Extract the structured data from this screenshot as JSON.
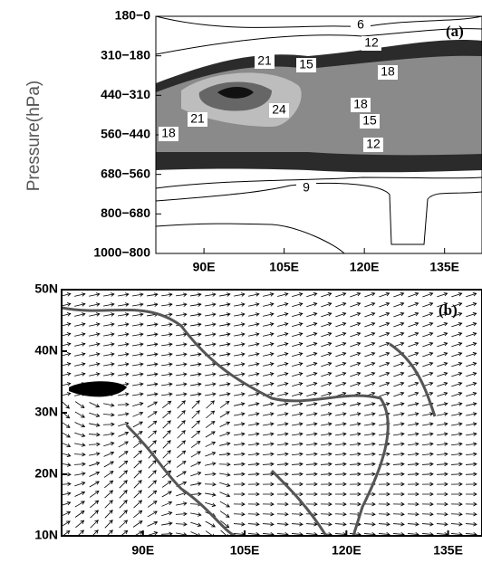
{
  "chart_data": [
    {
      "type": "contour",
      "panel_label": "(a)",
      "y_label": "Pressure(hPa)",
      "categories": [
        "180−0",
        "310−180",
        "440−310",
        "560−440",
        "680−560",
        "800−680",
        "1000−800"
      ],
      "xlim": [
        81,
        142
      ],
      "xticks": [
        {
          "value": 90,
          "label": "90E"
        },
        {
          "value": 105,
          "label": "105E"
        },
        {
          "value": 120,
          "label": "120E"
        },
        {
          "value": 135,
          "label": "135E"
        }
      ],
      "contour_labels": [
        6,
        12,
        21,
        15,
        18,
        21,
        24,
        18,
        18,
        15,
        12,
        9
      ]
    },
    {
      "type": "vector",
      "panel_label": "(b)",
      "xlim": [
        78,
        140
      ],
      "ylim": [
        10,
        50
      ],
      "xticks": [
        {
          "value": 90,
          "label": "90E"
        },
        {
          "value": 105,
          "label": "105E"
        },
        {
          "value": 120,
          "label": "120E"
        },
        {
          "value": 135,
          "label": "135E"
        }
      ],
      "yticks": [
        {
          "value": 10,
          "label": "10N"
        },
        {
          "value": 20,
          "label": "20N"
        },
        {
          "value": 30,
          "label": "30N"
        },
        {
          "value": 40,
          "label": "40N"
        },
        {
          "value": 50,
          "label": "50N"
        }
      ]
    }
  ]
}
